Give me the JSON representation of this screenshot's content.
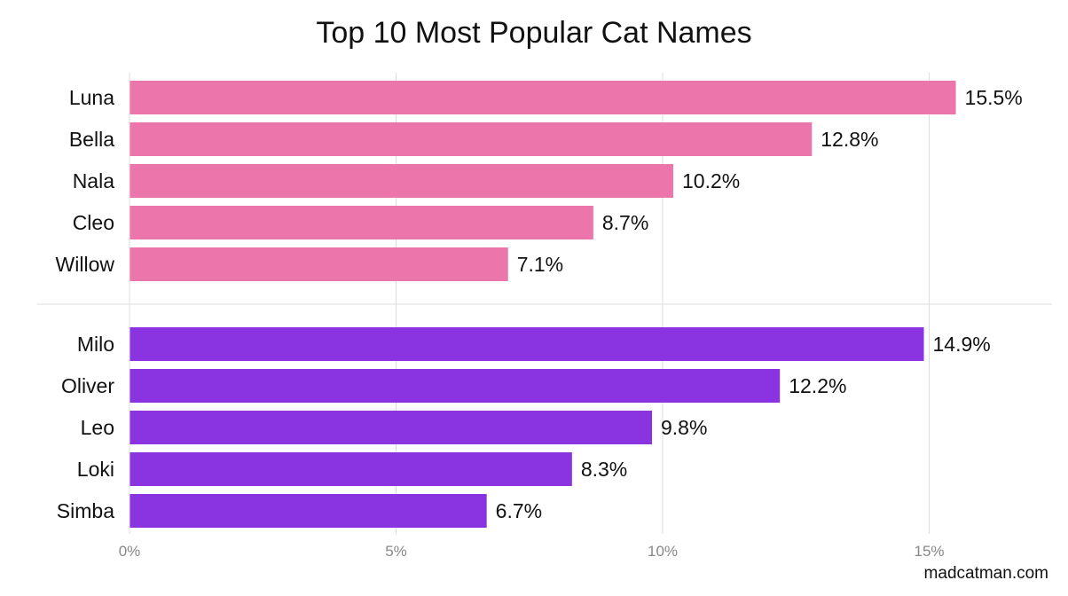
{
  "chart_data": {
    "type": "bar",
    "orientation": "horizontal",
    "title": "Top 10 Most Popular Cat Names",
    "xlim": [
      0,
      17
    ],
    "x_ticks": [
      0,
      5,
      10,
      15
    ],
    "x_tick_labels": [
      "0%",
      "5%",
      "10%",
      "15%"
    ],
    "grid": "vertical",
    "groups": [
      {
        "color": "#ec75ab",
        "categories": [
          "Luna",
          "Bella",
          "Nala",
          "Cleo",
          "Willow"
        ],
        "values": [
          15.5,
          12.8,
          10.2,
          8.7,
          7.1
        ],
        "value_labels": [
          "15.5%",
          "12.8%",
          "10.2%",
          "8.7%",
          "7.1%"
        ]
      },
      {
        "color": "#8a33e0",
        "categories": [
          "Milo",
          "Oliver",
          "Leo",
          "Loki",
          "Simba"
        ],
        "values": [
          14.9,
          12.2,
          9.8,
          8.3,
          6.7
        ],
        "value_labels": [
          "14.9%",
          "12.2%",
          "9.8%",
          "8.3%",
          "6.7%"
        ]
      }
    ]
  },
  "source": "madcatman.com",
  "colors": {
    "gridline": "#dddddd",
    "tick_text": "#888888",
    "text": "#111111"
  }
}
